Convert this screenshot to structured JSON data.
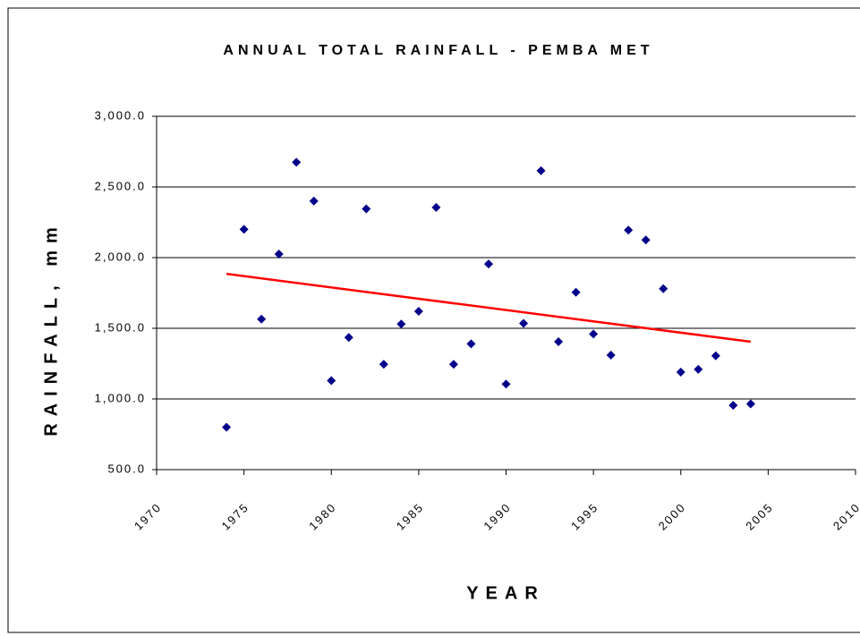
{
  "chart_data": {
    "type": "scatter",
    "title": "ANNUAL TOTAL RAINFALL - PEMBA MET",
    "x_label": "YEAR",
    "y_label": "RAINFALL, mm",
    "x": [
      1974,
      1975,
      1976,
      1977,
      1978,
      1979,
      1980,
      1981,
      1982,
      1983,
      1984,
      1985,
      1986,
      1987,
      1988,
      1989,
      1990,
      1991,
      1992,
      1993,
      1994,
      1995,
      1996,
      1997,
      1998,
      1999,
      2000,
      2001,
      2002,
      2003,
      2004
    ],
    "values": [
      800,
      2200,
      1565,
      2025,
      2675,
      2400,
      1130,
      1435,
      2345,
      1245,
      1530,
      1620,
      2355,
      1245,
      1390,
      1955,
      1105,
      1535,
      2615,
      1405,
      1755,
      1460,
      1310,
      2195,
      2125,
      1780,
      1190,
      1210,
      1305,
      955,
      965
    ],
    "color": "#00008b",
    "trendline": {
      "x": [
        1974,
        2004
      ],
      "values": [
        1885,
        1405
      ],
      "color": "#ff0000"
    },
    "xlim": [
      1970,
      2010
    ],
    "xticks": [
      1970,
      1975,
      1980,
      1985,
      1990,
      1995,
      2000,
      2005,
      2010
    ],
    "ylim": [
      500,
      3000
    ],
    "yticks": [
      {
        "value": 500,
        "label": "500.0"
      },
      {
        "value": 1000,
        "label": "1,000.0"
      },
      {
        "value": 1500,
        "label": "1,500.0"
      },
      {
        "value": 2000,
        "label": "2,000.0"
      },
      {
        "value": 2500,
        "label": "2,500.0"
      },
      {
        "value": 3000,
        "label": "3,000.0"
      }
    ],
    "grid": true
  }
}
